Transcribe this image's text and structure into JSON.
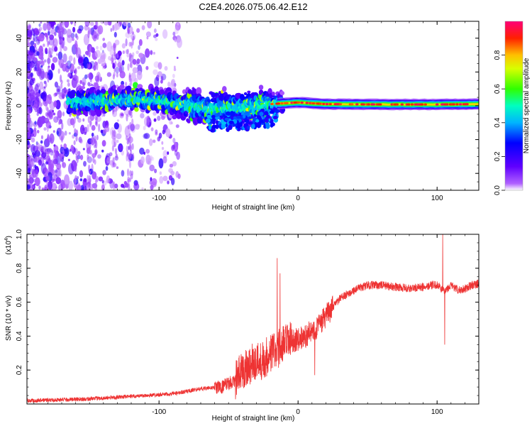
{
  "title": "C2E4.2026.075.06.42.E12",
  "chart_data": [
    {
      "type": "heatmap",
      "title": "C2E4.2026.075.06.42.E12",
      "xlabel": "Height of straight line (km)",
      "ylabel": "Frequency (Hz)",
      "xlim": [
        -195,
        130
      ],
      "ylim": [
        -50,
        50
      ],
      "x_ticks": [
        -100,
        0,
        100
      ],
      "y_ticks": [
        -40,
        -20,
        0,
        20,
        40
      ],
      "colorbar": {
        "label": "Normalized spectral amplitude",
        "range": [
          0.0,
          1.0
        ],
        "ticks": [
          0.0,
          0.2,
          0.4,
          0.6,
          0.8
        ],
        "colormap": [
          "#ffffff",
          "#7b00ff",
          "#0000ff",
          "#00ffff",
          "#00ff00",
          "#ffff00",
          "#ff8000",
          "#ff0000",
          "#ff0080"
        ]
      },
      "ridge_center_hz": [
        [
          -160,
          2
        ],
        [
          -140,
          3
        ],
        [
          -120,
          4
        ],
        [
          -100,
          3
        ],
        [
          -80,
          0
        ],
        [
          -60,
          -2
        ],
        [
          -40,
          -1
        ],
        [
          -20,
          1
        ],
        [
          0,
          2
        ],
        [
          20,
          1
        ],
        [
          60,
          0.8
        ],
        [
          100,
          0.8
        ],
        [
          130,
          1
        ]
      ]
    },
    {
      "type": "line",
      "xlabel": "Height of straight line (km)",
      "ylabel": "SNR (10 * v/v)",
      "y_multiplier": "(x10",
      "y_multiplier_exp": "4",
      "y_multiplier_close": ")",
      "xlim": [
        -195,
        130
      ],
      "ylim": [
        0,
        1.0
      ],
      "x_ticks": [
        -100,
        0,
        100
      ],
      "y_ticks": [
        0.2,
        0.4,
        0.6,
        0.8,
        1.0
      ],
      "series": [
        {
          "name": "SNR",
          "color": "#ee3333",
          "x": [
            -195,
            -170,
            -150,
            -130,
            -110,
            -90,
            -70,
            -55,
            -45,
            -40,
            -35,
            -30,
            -25,
            -20,
            -15,
            -10,
            -5,
            0,
            5,
            10,
            15,
            20,
            25,
            30,
            40,
            50,
            60,
            70,
            80,
            90,
            95,
            100,
            103,
            105,
            107,
            110,
            115,
            120,
            125,
            130
          ],
          "values": [
            0.02,
            0.025,
            0.03,
            0.04,
            0.05,
            0.06,
            0.09,
            0.1,
            0.14,
            0.2,
            0.23,
            0.25,
            0.26,
            0.3,
            0.32,
            0.35,
            0.37,
            0.38,
            0.4,
            0.43,
            0.46,
            0.52,
            0.57,
            0.62,
            0.67,
            0.7,
            0.7,
            0.69,
            0.68,
            0.69,
            0.7,
            0.7,
            0.68,
            0.66,
            0.68,
            0.7,
            0.67,
            0.68,
            0.7,
            0.71
          ],
          "spikes": [
            {
              "x": -15,
              "value": 0.86
            },
            {
              "x": -13,
              "value": 0.77
            },
            {
              "x": 12,
              "value": 0.17
            },
            {
              "x": 104,
              "value": 1.0
            },
            {
              "x": 105.5,
              "value": 0.35
            }
          ]
        }
      ]
    }
  ]
}
